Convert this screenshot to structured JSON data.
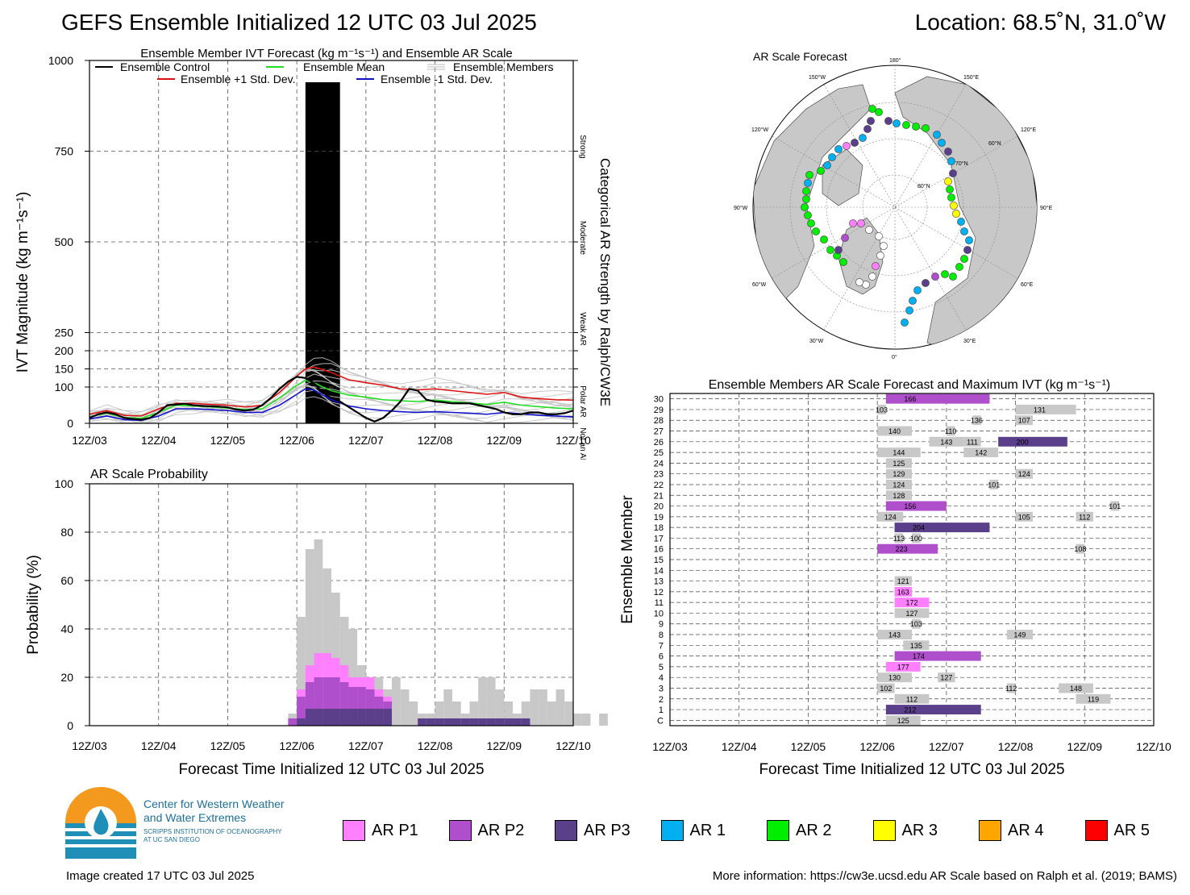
{
  "header": {
    "title": "GEFS Ensemble Initialized 12 UTC 03 Jul 2025",
    "location": "Location: 68.5˚N, 31.0˚W"
  },
  "ivt_panel": {
    "title": "Ensemble Member IVT Forecast (kg m⁻¹s⁻¹) and Ensemble AR Scale",
    "ylabel": "IVT Magnitude (kg m⁻¹s⁻¹)",
    "right_label": "Categorical AR Strength by Ralph/CW3E",
    "categories": [
      "Strong",
      "Moderate",
      "Weak AR",
      "Polar AR",
      "Not an AR"
    ],
    "legend": {
      "control": "Ensemble Control",
      "mean": "Ensemble Mean",
      "members": "Ensemble Members",
      "plus_sd": "Ensemble +1 Std. Dev.",
      "minus_sd": "Ensemble -1 Std. Dev."
    },
    "colors": {
      "control": "#000000",
      "mean": "#22dd22",
      "members": "#bbbbbb",
      "plus_sd": "#dd1111",
      "minus_sd": "#1111cc",
      "ar_shade": "#c8c8c8"
    }
  },
  "prob_panel": {
    "title": "AR Scale Probability",
    "ylabel": "Probability (%)",
    "xlabel": "Forecast Time Initialized 12 UTC 03 Jul 2025"
  },
  "map_panel": {
    "title": "AR Scale Forecast",
    "lon_labels": [
      "180°",
      "150°E",
      "120°E",
      "90°E",
      "60°E",
      "30°E",
      "0°",
      "30°W",
      "60°W",
      "90°W",
      "120°W",
      "150°W"
    ],
    "lat_labels": [
      "60°N",
      "70°N",
      "80°N"
    ]
  },
  "member_panel": {
    "title": "Ensemble Members AR Scale Forecast and Maximum IVT (kg m⁻¹s⁻¹)",
    "ylabel": "Ensemble Member",
    "xlabel": "Forecast Time Initialized 12 UTC 03 Jul 2025"
  },
  "footer": {
    "org_line1": "Center for Western Weather",
    "org_line2": "and Water Extremes",
    "org_line3": "SCRIPPS INSTITUTION OF OCEANOGRAPHY",
    "org_line4": "AT UC SAN DIEGO",
    "created": "Image created 17 UTC 03 Jul 2025",
    "more_info": "More information: https://cw3e.ucsd.edu AR Scale based on Ralph et al. (2019; BAMS)"
  },
  "ar_legend": [
    {
      "label": "AR P1",
      "color": "#ff80ff"
    },
    {
      "label": "AR P2",
      "color": "#b04fcc"
    },
    {
      "label": "AR P3",
      "color": "#5a3f8a"
    },
    {
      "label": "AR 1",
      "color": "#00b0f0"
    },
    {
      "label": "AR 2",
      "color": "#00ee00"
    },
    {
      "label": "AR 3",
      "color": "#ffff00"
    },
    {
      "label": "AR 4",
      "color": "#ffa500"
    },
    {
      "label": "AR 5",
      "color": "#ff0000"
    }
  ],
  "chart_data": [
    {
      "type": "line",
      "name": "ivt",
      "x_ticks": [
        "12Z/03",
        "12Z/04",
        "12Z/05",
        "12Z/06",
        "12Z/07",
        "12Z/08",
        "12Z/09",
        "12Z/10"
      ],
      "xlim": [
        0,
        7
      ],
      "ylim": [
        0,
        1000
      ],
      "y_ticks": [
        0,
        100,
        150,
        200,
        250,
        500,
        750,
        1000
      ],
      "ar_shading_days": [
        0.625,
        1.125
      ],
      "series": [
        {
          "name": "Ensemble Control",
          "key": "control",
          "x": [
            0,
            0.125,
            0.25,
            0.375,
            0.5,
            0.625,
            0.75,
            0.875,
            1,
            1.125,
            1.25,
            1.375,
            1.5,
            1.625,
            1.75,
            1.875,
            2,
            2.125,
            2.25,
            2.375,
            2.5,
            2.625,
            2.75,
            2.875,
            3,
            3.125,
            3.25,
            3.375,
            3.5,
            3.625,
            3.75,
            3.875,
            4,
            4.125,
            4.25,
            4.375,
            4.5,
            4.625,
            4.75,
            4.875,
            5,
            5.125,
            5.25,
            5.375,
            5.5,
            5.625,
            5.75,
            5.875,
            6,
            6.125,
            6.25,
            6.375,
            6.5,
            6.625,
            6.75,
            6.875,
            7
          ],
          "y": [
            15,
            25,
            30,
            25,
            15,
            12,
            10,
            15,
            30,
            50,
            52,
            54,
            50,
            48,
            47,
            46,
            44,
            38,
            35,
            38,
            50,
            70,
            95,
            115,
            128,
            125,
            110,
            85,
            70,
            60,
            45,
            30,
            15,
            5,
            15,
            35,
            60,
            95,
            90,
            65,
            60,
            58,
            55,
            55,
            55,
            50,
            45,
            40,
            30,
            25,
            25,
            30,
            30,
            25,
            25,
            28,
            35
          ]
        },
        {
          "name": "Ensemble Mean",
          "key": "mean",
          "x": [
            0,
            0.25,
            0.5,
            0.75,
            1,
            1.25,
            1.5,
            1.75,
            2,
            2.25,
            2.5,
            2.75,
            3,
            3.125,
            3.25,
            3.375,
            3.5,
            3.75,
            4,
            4.25,
            4.5,
            4.75,
            5,
            5.25,
            5.5,
            5.75,
            6,
            6.25,
            6.5,
            6.75,
            7
          ],
          "y": [
            18,
            28,
            16,
            14,
            30,
            50,
            48,
            45,
            42,
            38,
            40,
            70,
            105,
            118,
            112,
            100,
            90,
            78,
            72,
            65,
            62,
            60,
            64,
            60,
            56,
            52,
            58,
            50,
            46,
            42,
            40
          ]
        },
        {
          "name": "Ensemble +1 Std. Dev.",
          "key": "plus_sd",
          "x": [
            0,
            0.25,
            0.5,
            0.75,
            1,
            1.25,
            1.5,
            1.75,
            2,
            2.25,
            2.5,
            2.75,
            3,
            3.125,
            3.25,
            3.375,
            3.5,
            3.75,
            4,
            4.25,
            4.5,
            4.75,
            5,
            5.25,
            5.5,
            5.75,
            6,
            6.25,
            6.5,
            6.75,
            7
          ],
          "y": [
            25,
            35,
            22,
            20,
            40,
            55,
            55,
            52,
            50,
            45,
            50,
            85,
            130,
            150,
            155,
            148,
            140,
            120,
            112,
            105,
            95,
            92,
            95,
            90,
            85,
            80,
            85,
            72,
            68,
            65,
            64
          ]
        },
        {
          "name": "Ensemble -1 Std. Dev.",
          "key": "minus_sd",
          "x": [
            0,
            0.25,
            0.5,
            0.75,
            1,
            1.25,
            1.5,
            1.75,
            2,
            2.25,
            2.5,
            2.75,
            3,
            3.125,
            3.25,
            3.375,
            3.5,
            3.75,
            4,
            4.25,
            4.5,
            4.75,
            5,
            5.25,
            5.5,
            5.75,
            6,
            6.25,
            6.5,
            6.75,
            7
          ],
          "y": [
            12,
            20,
            10,
            8,
            20,
            40,
            40,
            38,
            35,
            30,
            30,
            50,
            80,
            95,
            92,
            78,
            65,
            48,
            40,
            35,
            32,
            30,
            32,
            30,
            28,
            25,
            30,
            26,
            22,
            20,
            18
          ]
        }
      ]
    },
    {
      "type": "bar",
      "name": "probability",
      "ylabel": "Probability (%)",
      "ylim": [
        0,
        100
      ],
      "y_ticks": [
        0,
        20,
        40,
        60,
        80,
        100
      ],
      "bin_days": 0.125,
      "bins_start": 2.875,
      "gray_total": [
        5,
        45,
        73,
        77,
        65,
        55,
        45,
        40,
        25,
        20,
        20,
        15,
        20,
        15,
        10,
        5,
        5,
        10,
        15,
        10,
        5,
        10,
        20,
        20,
        15,
        10,
        5,
        10,
        15,
        15,
        10,
        15,
        10,
        5,
        5,
        0,
        5
      ],
      "p2_total": [
        3,
        12,
        18,
        20,
        20,
        20,
        18,
        16,
        16,
        15,
        12,
        10,
        0,
        0,
        0,
        0,
        0,
        0,
        0,
        0,
        0,
        0,
        0,
        0,
        0,
        0,
        0,
        0,
        0,
        0,
        0,
        0,
        0,
        0,
        0,
        0,
        0
      ],
      "p1_total": [
        3,
        15,
        25,
        30,
        30,
        28,
        25,
        20,
        20,
        20,
        15,
        12,
        0,
        0,
        0,
        0,
        0,
        0,
        0,
        0,
        0,
        0,
        0,
        0,
        0,
        0,
        0,
        0,
        0,
        0,
        0,
        0,
        0,
        0,
        0,
        0,
        0
      ],
      "p3_total": [
        0,
        3,
        7,
        7,
        7,
        7,
        7,
        7,
        7,
        7,
        7,
        7,
        0,
        0,
        0,
        3,
        3,
        3,
        3,
        3,
        3,
        3,
        3,
        3,
        3,
        3,
        3,
        3,
        0,
        0,
        0,
        0,
        0,
        0,
        0,
        0,
        0
      ]
    },
    {
      "type": "table",
      "name": "member_ar_scale",
      "members": [
        "C",
        "1",
        "2",
        "3",
        "4",
        "5",
        "6",
        "7",
        "8",
        "9",
        "10",
        "11",
        "12",
        "13",
        "14",
        "15",
        "16",
        "17",
        "18",
        "19",
        "20",
        "21",
        "22",
        "23",
        "24",
        "25",
        "26",
        "27",
        "28",
        "29",
        "30"
      ],
      "bars": [
        {
          "m": "C",
          "start": 3.125,
          "end": 3.625,
          "cat": "gray",
          "ivt": 125
        },
        {
          "m": "1",
          "start": 3.125,
          "end": 4.5,
          "cat": "P3",
          "ivt": 212
        },
        {
          "m": "2",
          "start": 3.25,
          "end": 3.75,
          "cat": "gray",
          "ivt": 112
        },
        {
          "m": "2",
          "start": 5.875,
          "end": 6.375,
          "cat": "gray",
          "ivt": 119
        },
        {
          "m": "3",
          "start": 3.0,
          "end": 3.25,
          "cat": "gray",
          "ivt": 102
        },
        {
          "m": "3",
          "start": 5.625,
          "end": 6.125,
          "cat": "gray",
          "ivt": 148
        },
        {
          "m": "3",
          "start": 4.875,
          "end": 5.0,
          "cat": "gray",
          "ivt": 112
        },
        {
          "m": "4",
          "start": 3.0,
          "end": 3.5,
          "cat": "gray",
          "ivt": 130
        },
        {
          "m": "4",
          "start": 3.875,
          "end": 4.125,
          "cat": "gray",
          "ivt": 127
        },
        {
          "m": "5",
          "start": 3.125,
          "end": 3.625,
          "cat": "P1",
          "ivt": 177
        },
        {
          "m": "6",
          "start": 3.25,
          "end": 4.5,
          "cat": "P2",
          "ivt": 174
        },
        {
          "m": "7",
          "start": 3.375,
          "end": 3.75,
          "cat": "gray",
          "ivt": 135
        },
        {
          "m": "8",
          "start": 3.0,
          "end": 3.5,
          "cat": "gray",
          "ivt": 143
        },
        {
          "m": "8",
          "start": 4.875,
          "end": 5.25,
          "cat": "gray",
          "ivt": 149
        },
        {
          "m": "9",
          "start": 3.5,
          "end": 3.625,
          "cat": "gray",
          "ivt": 103
        },
        {
          "m": "10",
          "start": 3.25,
          "end": 3.75,
          "cat": "gray",
          "ivt": 127
        },
        {
          "m": "11",
          "start": 3.25,
          "end": 3.75,
          "cat": "P1",
          "ivt": 172
        },
        {
          "m": "12",
          "start": 3.25,
          "end": 3.5,
          "cat": "P1",
          "ivt": 163
        },
        {
          "m": "13",
          "start": 3.25,
          "end": 3.5,
          "cat": "gray",
          "ivt": 121
        },
        {
          "m": "16",
          "start": 3.0,
          "end": 3.875,
          "cat": "P2",
          "ivt": 223
        },
        {
          "m": "16",
          "start": 5.875,
          "end": 6.0,
          "cat": "gray",
          "ivt": 108
        },
        {
          "m": "17",
          "start": 3.25,
          "end": 3.375,
          "cat": "gray",
          "ivt": 113
        },
        {
          "m": "17",
          "start": 3.5,
          "end": 3.625,
          "cat": "gray",
          "ivt": 100
        },
        {
          "m": "18",
          "start": 3.25,
          "end": 4.625,
          "cat": "P3",
          "ivt": 204
        },
        {
          "m": "19",
          "start": 3.0,
          "end": 3.375,
          "cat": "gray",
          "ivt": 124
        },
        {
          "m": "19",
          "start": 5.0,
          "end": 5.25,
          "cat": "gray",
          "ivt": 105
        },
        {
          "m": "19",
          "start": 5.875,
          "end": 6.125,
          "cat": "gray",
          "ivt": 112
        },
        {
          "m": "20",
          "start": 3.125,
          "end": 4.0,
          "cat": "P2",
          "ivt": 156
        },
        {
          "m": "20",
          "start": 6.375,
          "end": 6.5,
          "cat": "gray",
          "ivt": 101
        },
        {
          "m": "21",
          "start": 3.125,
          "end": 3.5,
          "cat": "gray",
          "ivt": 128
        },
        {
          "m": "22",
          "start": 3.125,
          "end": 3.5,
          "cat": "gray",
          "ivt": 124
        },
        {
          "m": "22",
          "start": 4.625,
          "end": 4.75,
          "cat": "gray",
          "ivt": 101
        },
        {
          "m": "23",
          "start": 3.125,
          "end": 3.5,
          "cat": "gray",
          "ivt": 129
        },
        {
          "m": "23",
          "start": 5.0,
          "end": 5.25,
          "cat": "gray",
          "ivt": 124
        },
        {
          "m": "24",
          "start": 3.125,
          "end": 3.5,
          "cat": "gray",
          "ivt": 125
        },
        {
          "m": "25",
          "start": 3.0,
          "end": 3.625,
          "cat": "gray",
          "ivt": 144
        },
        {
          "m": "25",
          "start": 4.25,
          "end": 4.75,
          "cat": "gray",
          "ivt": 142
        },
        {
          "m": "26",
          "start": 3.75,
          "end": 4.25,
          "cat": "gray",
          "ivt": 143
        },
        {
          "m": "26",
          "start": 4.25,
          "end": 4.5,
          "cat": "gray",
          "ivt": 111
        },
        {
          "m": "26",
          "start": 4.75,
          "end": 5.75,
          "cat": "P3",
          "ivt": 200
        },
        {
          "m": "27",
          "start": 3.0,
          "end": 3.5,
          "cat": "gray",
          "ivt": 140
        },
        {
          "m": "27",
          "start": 4.0,
          "end": 4.125,
          "cat": "gray",
          "ivt": 110
        },
        {
          "m": "28",
          "start": 4.375,
          "end": 4.5,
          "cat": "gray",
          "ivt": 136
        },
        {
          "m": "28",
          "start": 5.0,
          "end": 5.25,
          "cat": "gray",
          "ivt": 107
        },
        {
          "m": "29",
          "start": 3.0,
          "end": 3.125,
          "cat": "gray",
          "ivt": 103
        },
        {
          "m": "29",
          "start": 5.0,
          "end": 5.875,
          "cat": "gray",
          "ivt": 131
        },
        {
          "m": "30",
          "start": 3.125,
          "end": 4.625,
          "cat": "P2",
          "ivt": 166
        }
      ]
    }
  ]
}
